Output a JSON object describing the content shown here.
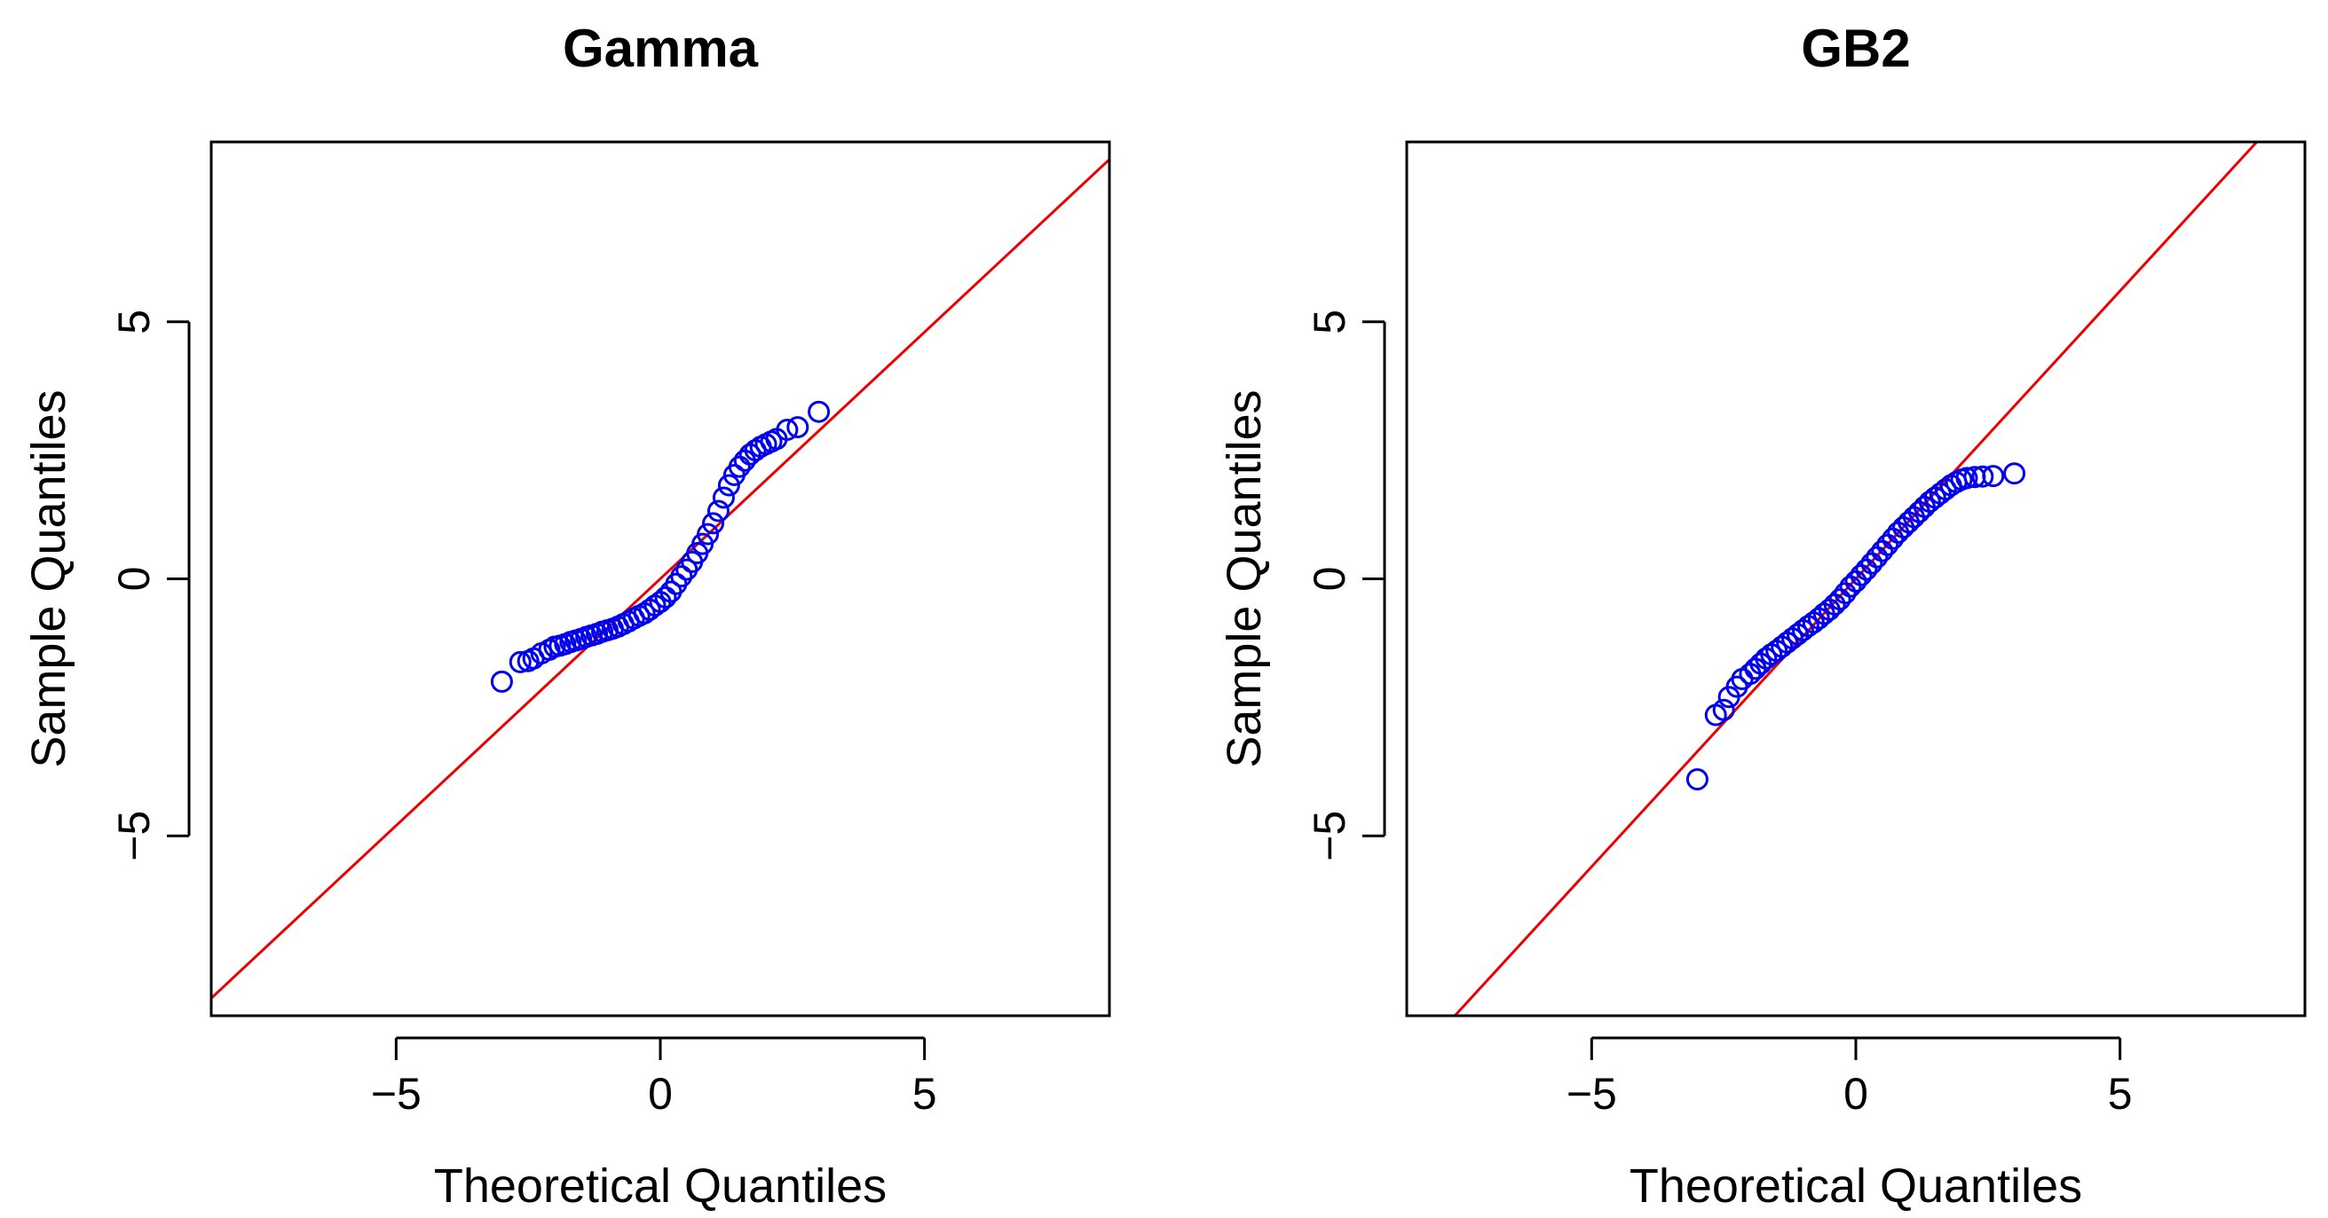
{
  "chart_data": [
    {
      "type": "scatter",
      "title": "Gamma",
      "xlabel": "Theoretical Quantiles",
      "ylabel": "Sample Quantiles",
      "xlim": [
        -8.5,
        8.5
      ],
      "ylim": [
        -8.5,
        8.5
      ],
      "xticks": [
        -5,
        0,
        5
      ],
      "yticks": [
        -5,
        0,
        5
      ],
      "xtick_labels": [
        "−5",
        "0",
        "5"
      ],
      "ytick_labels": [
        "−5",
        "0",
        "5"
      ],
      "grid": false,
      "point_color": "#0000ee",
      "line_color": "#ee0000",
      "reference_line": {
        "intercept": 0.0,
        "slope": 0.96
      },
      "sample_qq": [
        [
          -3.0,
          -2.0
        ],
        [
          -2.65,
          -1.62
        ],
        [
          -2.5,
          -1.6
        ],
        [
          -2.4,
          -1.55
        ],
        [
          -2.25,
          -1.45
        ],
        [
          -2.1,
          -1.38
        ],
        [
          -2.0,
          -1.32
        ],
        [
          -1.9,
          -1.3
        ],
        [
          -1.8,
          -1.27
        ],
        [
          -1.7,
          -1.23
        ],
        [
          -1.6,
          -1.2
        ],
        [
          -1.5,
          -1.17
        ],
        [
          -1.4,
          -1.13
        ],
        [
          -1.3,
          -1.1
        ],
        [
          -1.2,
          -1.07
        ],
        [
          -1.1,
          -1.03
        ],
        [
          -1.0,
          -1.0
        ],
        [
          -0.9,
          -0.97
        ],
        [
          -0.8,
          -0.93
        ],
        [
          -0.7,
          -0.88
        ],
        [
          -0.6,
          -0.83
        ],
        [
          -0.5,
          -0.77
        ],
        [
          -0.4,
          -0.72
        ],
        [
          -0.3,
          -0.67
        ],
        [
          -0.2,
          -0.6
        ],
        [
          -0.1,
          -0.52
        ],
        [
          0.0,
          -0.45
        ],
        [
          0.1,
          -0.36
        ],
        [
          0.2,
          -0.25
        ],
        [
          0.3,
          -0.1
        ],
        [
          0.4,
          0.05
        ],
        [
          0.5,
          0.18
        ],
        [
          0.6,
          0.33
        ],
        [
          0.7,
          0.5
        ],
        [
          0.8,
          0.68
        ],
        [
          0.9,
          0.87
        ],
        [
          1.0,
          1.08
        ],
        [
          1.1,
          1.32
        ],
        [
          1.2,
          1.58
        ],
        [
          1.3,
          1.82
        ],
        [
          1.4,
          2.02
        ],
        [
          1.5,
          2.18
        ],
        [
          1.6,
          2.3
        ],
        [
          1.7,
          2.42
        ],
        [
          1.8,
          2.5
        ],
        [
          1.9,
          2.57
        ],
        [
          2.0,
          2.62
        ],
        [
          2.1,
          2.67
        ],
        [
          2.2,
          2.72
        ],
        [
          2.4,
          2.9
        ],
        [
          2.6,
          2.95
        ],
        [
          3.0,
          3.25
        ]
      ]
    },
    {
      "type": "scatter",
      "title": "GB2",
      "xlabel": "Theoretical Quantiles",
      "ylabel": "Sample Quantiles",
      "xlim": [
        -8.5,
        8.5
      ],
      "ylim": [
        -8.5,
        8.5
      ],
      "xticks": [
        -5,
        0,
        5
      ],
      "yticks": [
        -5,
        0,
        5
      ],
      "xtick_labels": [
        "−5",
        "0",
        "5"
      ],
      "ytick_labels": [
        "−5",
        "0",
        "5"
      ],
      "grid": false,
      "point_color": "#0000ee",
      "line_color": "#ee0000",
      "reference_line": {
        "intercept": 0.0,
        "slope": 1.12
      },
      "sample_qq": [
        [
          -3.0,
          -3.9
        ],
        [
          -2.65,
          -2.65
        ],
        [
          -2.5,
          -2.55
        ],
        [
          -2.4,
          -2.3
        ],
        [
          -2.25,
          -2.1
        ],
        [
          -2.15,
          -1.95
        ],
        [
          -2.0,
          -1.85
        ],
        [
          -1.9,
          -1.75
        ],
        [
          -1.8,
          -1.65
        ],
        [
          -1.7,
          -1.55
        ],
        [
          -1.6,
          -1.47
        ],
        [
          -1.5,
          -1.4
        ],
        [
          -1.4,
          -1.32
        ],
        [
          -1.3,
          -1.24
        ],
        [
          -1.2,
          -1.16
        ],
        [
          -1.1,
          -1.08
        ],
        [
          -1.0,
          -1.0
        ],
        [
          -0.9,
          -0.92
        ],
        [
          -0.8,
          -0.85
        ],
        [
          -0.7,
          -0.77
        ],
        [
          -0.6,
          -0.68
        ],
        [
          -0.5,
          -0.6
        ],
        [
          -0.4,
          -0.5
        ],
        [
          -0.3,
          -0.4
        ],
        [
          -0.2,
          -0.28
        ],
        [
          -0.1,
          -0.15
        ],
        [
          0.0,
          -0.05
        ],
        [
          0.1,
          0.07
        ],
        [
          0.2,
          0.18
        ],
        [
          0.3,
          0.3
        ],
        [
          0.4,
          0.42
        ],
        [
          0.5,
          0.54
        ],
        [
          0.6,
          0.66
        ],
        [
          0.7,
          0.78
        ],
        [
          0.8,
          0.9
        ],
        [
          0.9,
          1.0
        ],
        [
          1.0,
          1.1
        ],
        [
          1.1,
          1.2
        ],
        [
          1.2,
          1.3
        ],
        [
          1.3,
          1.4
        ],
        [
          1.4,
          1.5
        ],
        [
          1.5,
          1.58
        ],
        [
          1.6,
          1.66
        ],
        [
          1.7,
          1.74
        ],
        [
          1.8,
          1.82
        ],
        [
          1.9,
          1.88
        ],
        [
          2.0,
          1.93
        ],
        [
          2.1,
          1.96
        ],
        [
          2.25,
          1.98
        ],
        [
          2.4,
          1.99
        ],
        [
          2.6,
          2.0
        ],
        [
          3.0,
          2.05
        ]
      ]
    }
  ]
}
